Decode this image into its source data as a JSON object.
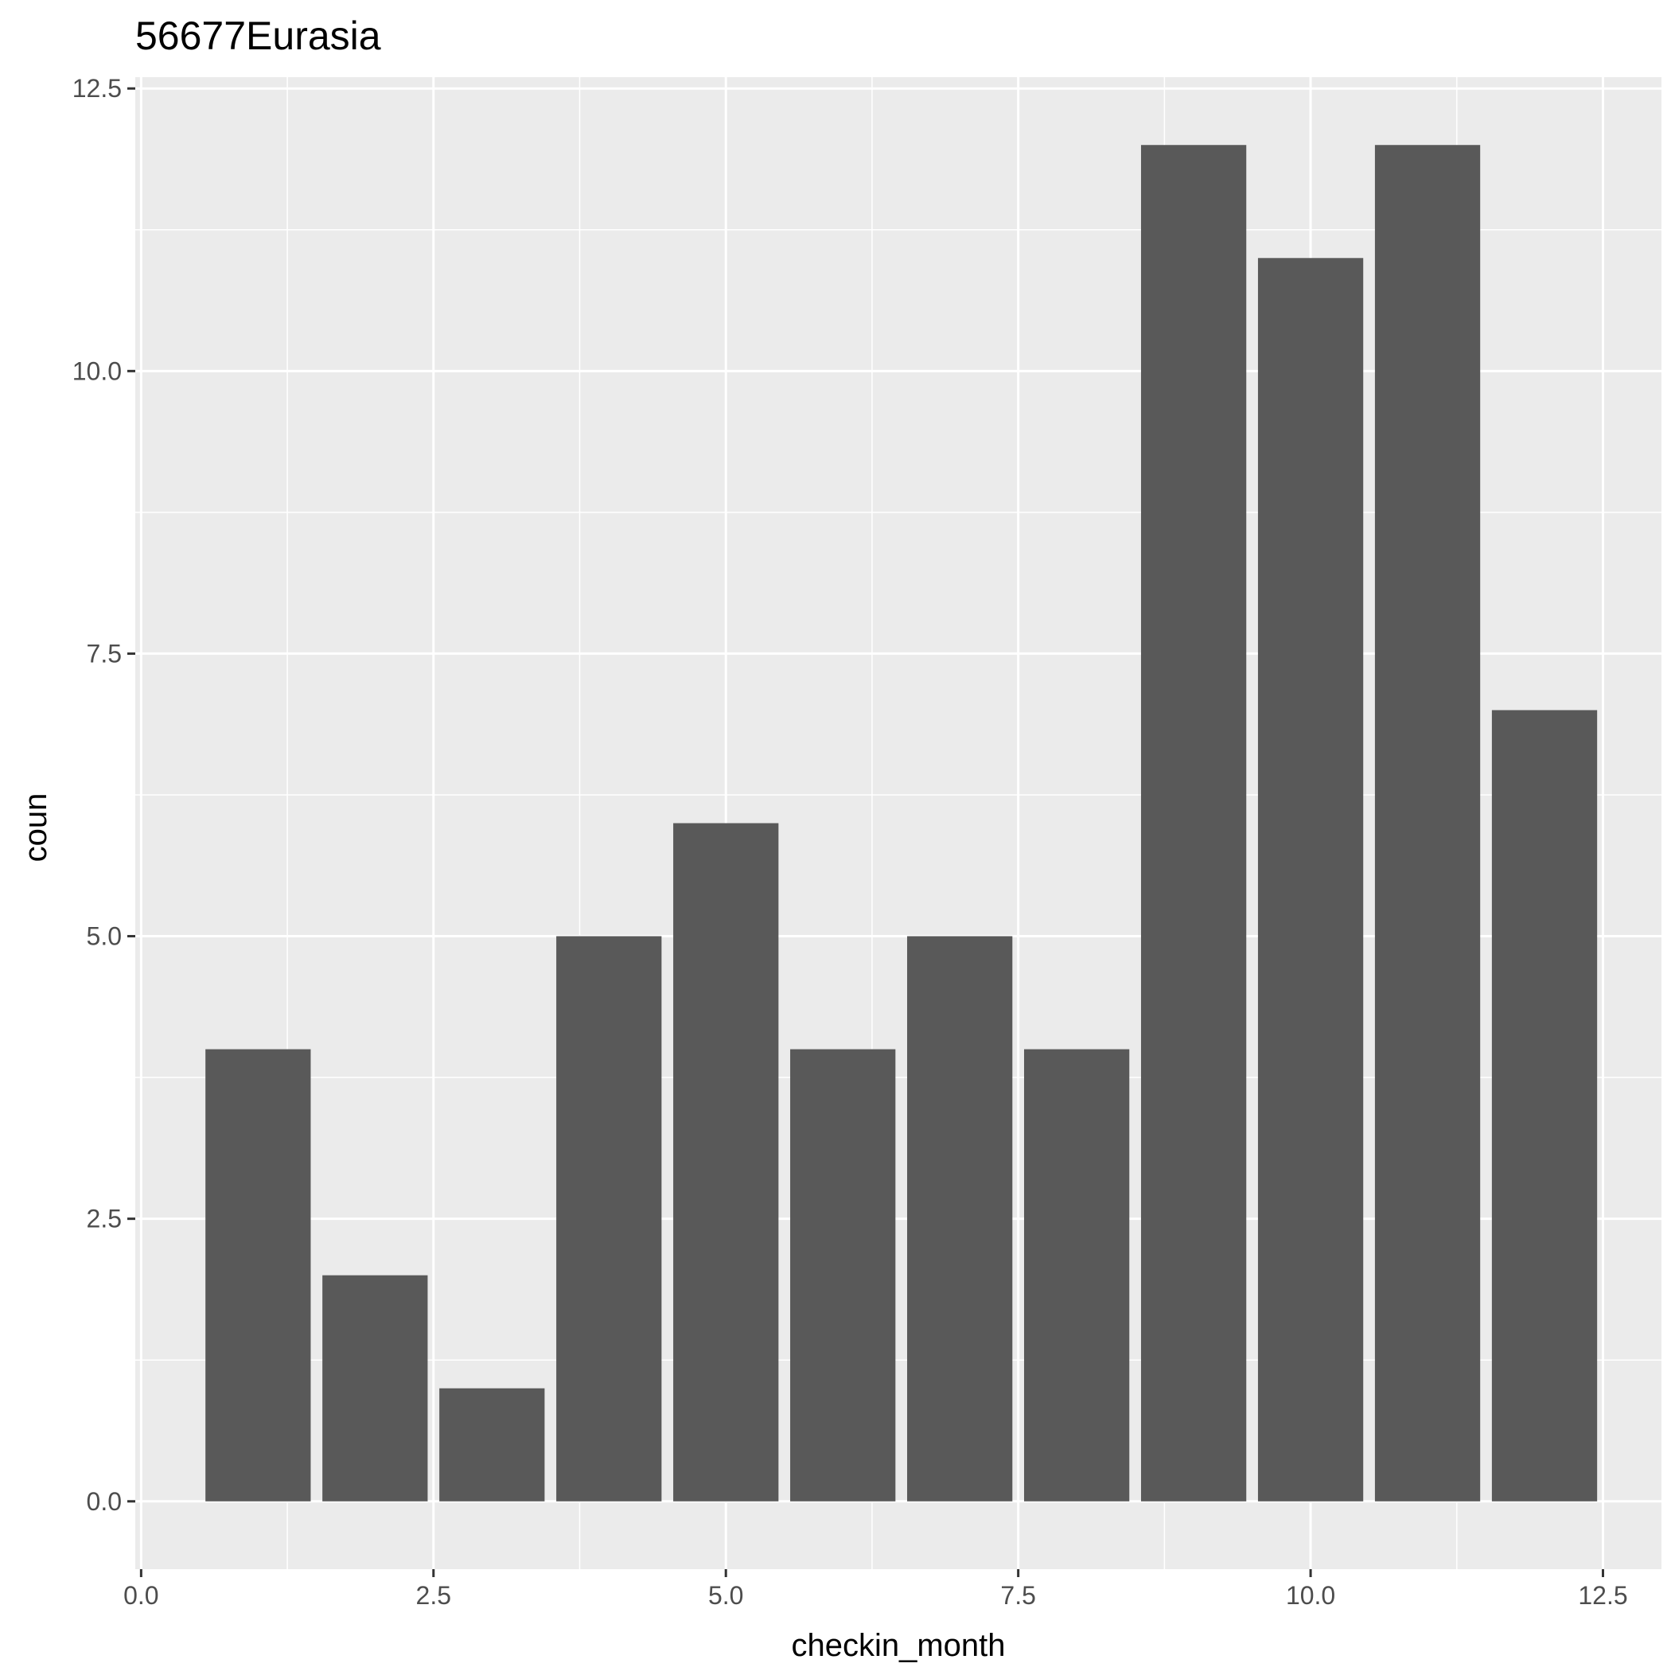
{
  "chart_data": {
    "type": "bar",
    "title": "56677Eurasia",
    "xlabel": "checkin_month",
    "ylabel": "coun",
    "x": [
      1,
      2,
      3,
      4,
      5,
      6,
      7,
      8,
      9,
      10,
      11,
      12
    ],
    "values": [
      4,
      2,
      1,
      5,
      6,
      4,
      5,
      4,
      12,
      11,
      12,
      7
    ],
    "bar_width": 0.9,
    "xlim": [
      -0.05,
      13.0
    ],
    "ylim": [
      -0.6,
      12.6
    ],
    "x_ticks": [
      0.0,
      2.5,
      5.0,
      7.5,
      10.0,
      12.5
    ],
    "x_tick_labels": [
      "0.0",
      "2.5",
      "5.0",
      "7.5",
      "10.0",
      "12.5"
    ],
    "y_ticks": [
      0.0,
      2.5,
      5.0,
      7.5,
      10.0,
      12.5
    ],
    "y_tick_labels": [
      "0.0",
      "2.5",
      "5.0",
      "7.5",
      "10.0",
      "12.5"
    ],
    "grid": true,
    "colors": {
      "bar": "#595959",
      "panel": "#ebebeb",
      "grid": "#ffffff"
    }
  }
}
